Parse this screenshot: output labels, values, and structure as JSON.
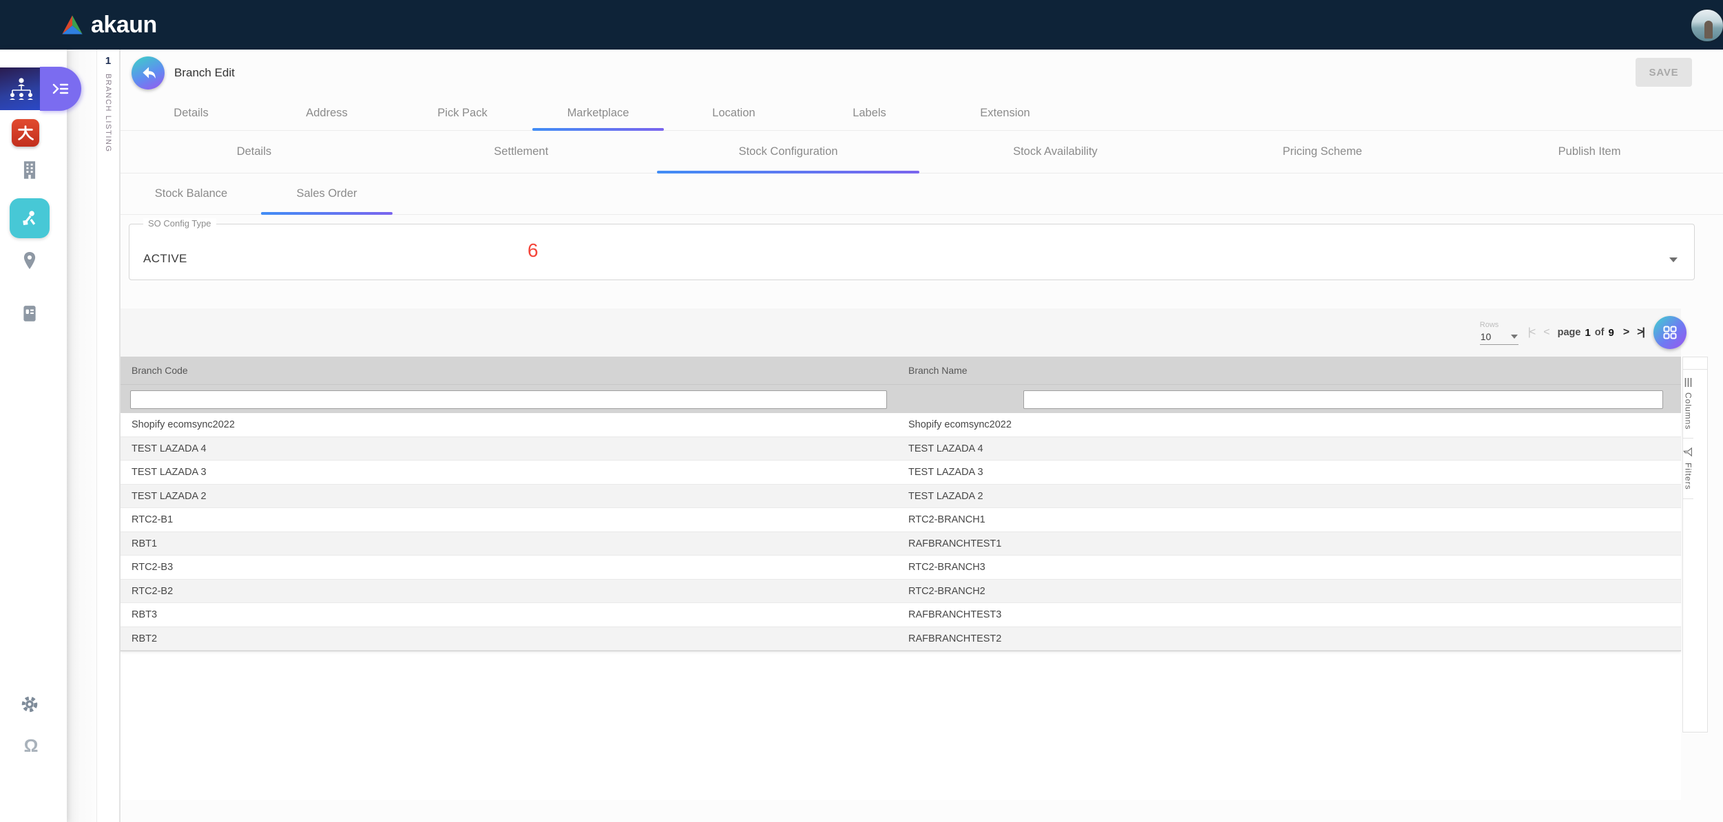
{
  "topbar": {
    "logo_text": "akaun"
  },
  "sidebar": {
    "items": [
      {
        "name": "org-structure",
        "active": true
      },
      {
        "name": "red-app"
      },
      {
        "name": "company"
      },
      {
        "name": "branch-network"
      },
      {
        "name": "location"
      },
      {
        "name": "directory"
      },
      {
        "name": "settings"
      },
      {
        "name": "support"
      }
    ]
  },
  "listing_strip": {
    "index": "1",
    "label": "BRANCH LISTING"
  },
  "header": {
    "title": "Branch Edit",
    "save_label": "SAVE"
  },
  "tabs": {
    "level1": {
      "items": [
        "Details",
        "Address",
        "Pick Pack",
        "Marketplace",
        "Location",
        "Labels",
        "Extension"
      ],
      "active": "Marketplace"
    },
    "level2": {
      "items": [
        "Details",
        "Settlement",
        "Stock Configuration",
        "Stock Availability",
        "Pricing Scheme",
        "Publish Item"
      ],
      "active": "Stock Configuration"
    },
    "level3": {
      "items": [
        "Stock Balance",
        "Sales Order"
      ],
      "active": "Sales Order"
    }
  },
  "form": {
    "so_config_label": "SO Config Type",
    "so_config_value": "ACTIVE",
    "annotation": "6"
  },
  "pagination": {
    "rows_label": "Rows",
    "rows_value": "10",
    "first_icon": "|<",
    "prev_icon": "<",
    "page_word": "page",
    "current": "1",
    "of_word": "of",
    "total": "9",
    "next_icon": ">",
    "last_icon": ">|"
  },
  "table": {
    "columns": [
      "Branch Code",
      "Branch Name"
    ],
    "filter_values": [
      "",
      ""
    ],
    "rows": [
      [
        "Shopify ecomsync2022",
        "Shopify ecomsync2022"
      ],
      [
        "TEST LAZADA 4",
        "TEST LAZADA 4"
      ],
      [
        "TEST LAZADA 3",
        "TEST LAZADA 3"
      ],
      [
        "TEST LAZADA 2",
        "TEST LAZADA 2"
      ],
      [
        "RTC2-B1",
        "RTC2-BRANCH1"
      ],
      [
        "RBT1",
        "RAFBRANCHTEST1"
      ],
      [
        "RTC2-B3",
        "RTC2-BRANCH3"
      ],
      [
        "RTC2-B2",
        "RTC2-BRANCH2"
      ],
      [
        "RBT3",
        "RAFBRANCHTEST3"
      ],
      [
        "RBT2",
        "RAFBRANCHTEST2"
      ]
    ]
  },
  "side_tools": {
    "columns_label": "Columns",
    "filters_label": "Filters"
  },
  "colors": {
    "topbar": "#0e2338",
    "accent_purple": "#7b6cf0",
    "tab_underline_from": "#418df5",
    "tab_underline_to": "#7a65ee",
    "gradient_teal": "#3ed3cd",
    "gradient_violet": "#9a55ee",
    "cyan_app": "#47c8d6",
    "red_app": "#d6402c",
    "table_header": "#d4d4d4",
    "annotation_red": "#f4453a"
  }
}
